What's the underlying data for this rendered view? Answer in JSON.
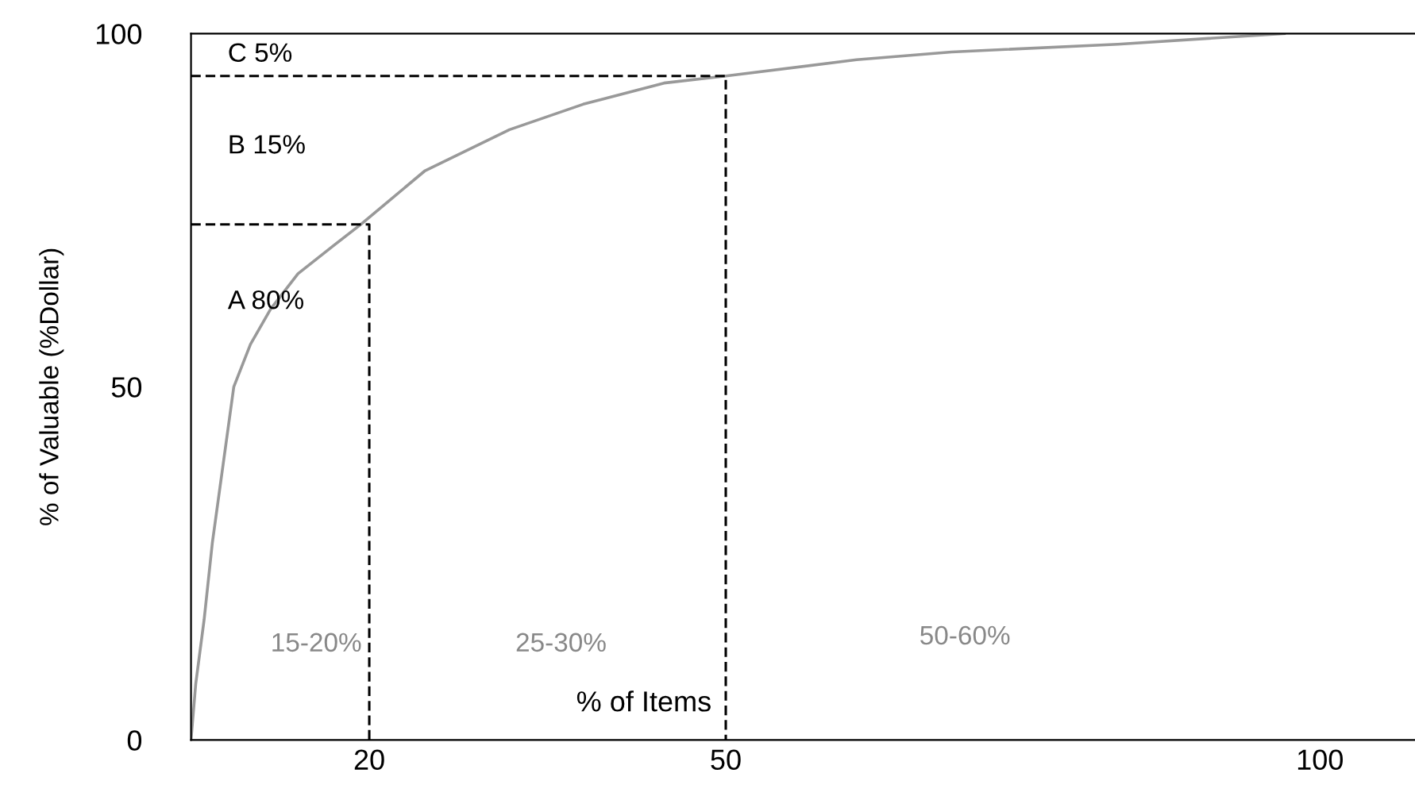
{
  "chart_data": {
    "type": "line",
    "xlabel": "% of Items",
    "ylabel": "% of Valuable (%Dollar)",
    "series": [
      {
        "color": "#999999",
        "line_style": "solid",
        "x": [
          5,
          5.4,
          6.1,
          6.8,
          7.7,
          8.6,
          10,
          11.7,
          14,
          17,
          19.3,
          24.7,
          31.8,
          38,
          44.8,
          50,
          61,
          69,
          83,
          97
        ],
        "values": [
          0,
          8,
          17,
          28,
          39,
          50,
          56,
          61,
          66,
          70,
          73,
          80.6,
          86.4,
          90,
          93,
          94,
          96.3,
          97.4,
          98.5,
          100
        ]
      },
      {
        "color": "#000000",
        "line_style": "dashed",
        "x": [
          5,
          20,
          20
        ],
        "values": [
          73,
          73,
          0
        ]
      },
      {
        "color": "#000000",
        "line_style": "dashed",
        "x": [
          5,
          50,
          50
        ],
        "values": [
          94,
          94,
          0
        ]
      }
    ],
    "annotations": [
      "C 5%",
      "B 15%",
      "A 80%",
      "15-20%",
      "25-30%",
      "50-60%"
    ],
    "xlim": [
      5,
      108
    ],
    "ylim": [
      0,
      100
    ],
    "xticks": [
      20,
      50,
      100
    ],
    "yticks": [
      0,
      50,
      100
    ],
    "grid": false,
    "legend": false,
    "marker": "none"
  }
}
